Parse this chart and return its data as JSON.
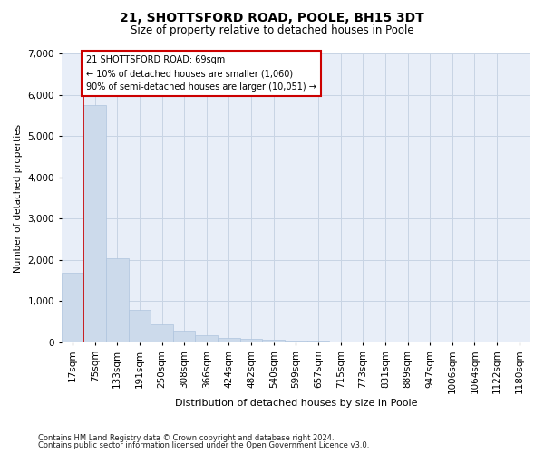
{
  "title": "21, SHOTTSFORD ROAD, POOLE, BH15 3DT",
  "subtitle": "Size of property relative to detached houses in Poole",
  "xlabel": "Distribution of detached houses by size in Poole",
  "ylabel": "Number of detached properties",
  "footnote1": "Contains HM Land Registry data © Crown copyright and database right 2024.",
  "footnote2": "Contains public sector information licensed under the Open Government Licence v3.0.",
  "bar_color": "#ccdaeb",
  "bar_edge_color": "#aec4de",
  "grid_color": "#c8d4e4",
  "annotation_box_color": "#cc0000",
  "categories": [
    "17sqm",
    "75sqm",
    "133sqm",
    "191sqm",
    "250sqm",
    "308sqm",
    "366sqm",
    "424sqm",
    "482sqm",
    "540sqm",
    "599sqm",
    "657sqm",
    "715sqm",
    "773sqm",
    "831sqm",
    "889sqm",
    "947sqm",
    "1006sqm",
    "1064sqm",
    "1122sqm",
    "1180sqm"
  ],
  "values": [
    1700,
    5750,
    2050,
    800,
    450,
    280,
    170,
    120,
    80,
    60,
    45,
    35,
    20,
    10,
    7,
    5,
    4,
    3,
    2,
    2,
    1
  ],
  "red_line_x": 0.5,
  "annotation_text_line1": "21 SHOTTSFORD ROAD: 69sqm",
  "annotation_text_line2": "← 10% of detached houses are smaller (1,060)",
  "annotation_text_line3": "90% of semi-detached houses are larger (10,051) →",
  "ylim": [
    0,
    7000
  ],
  "yticks": [
    0,
    1000,
    2000,
    3000,
    4000,
    5000,
    6000,
    7000
  ],
  "background_color": "#ffffff",
  "plot_bg_color": "#e8eef8"
}
